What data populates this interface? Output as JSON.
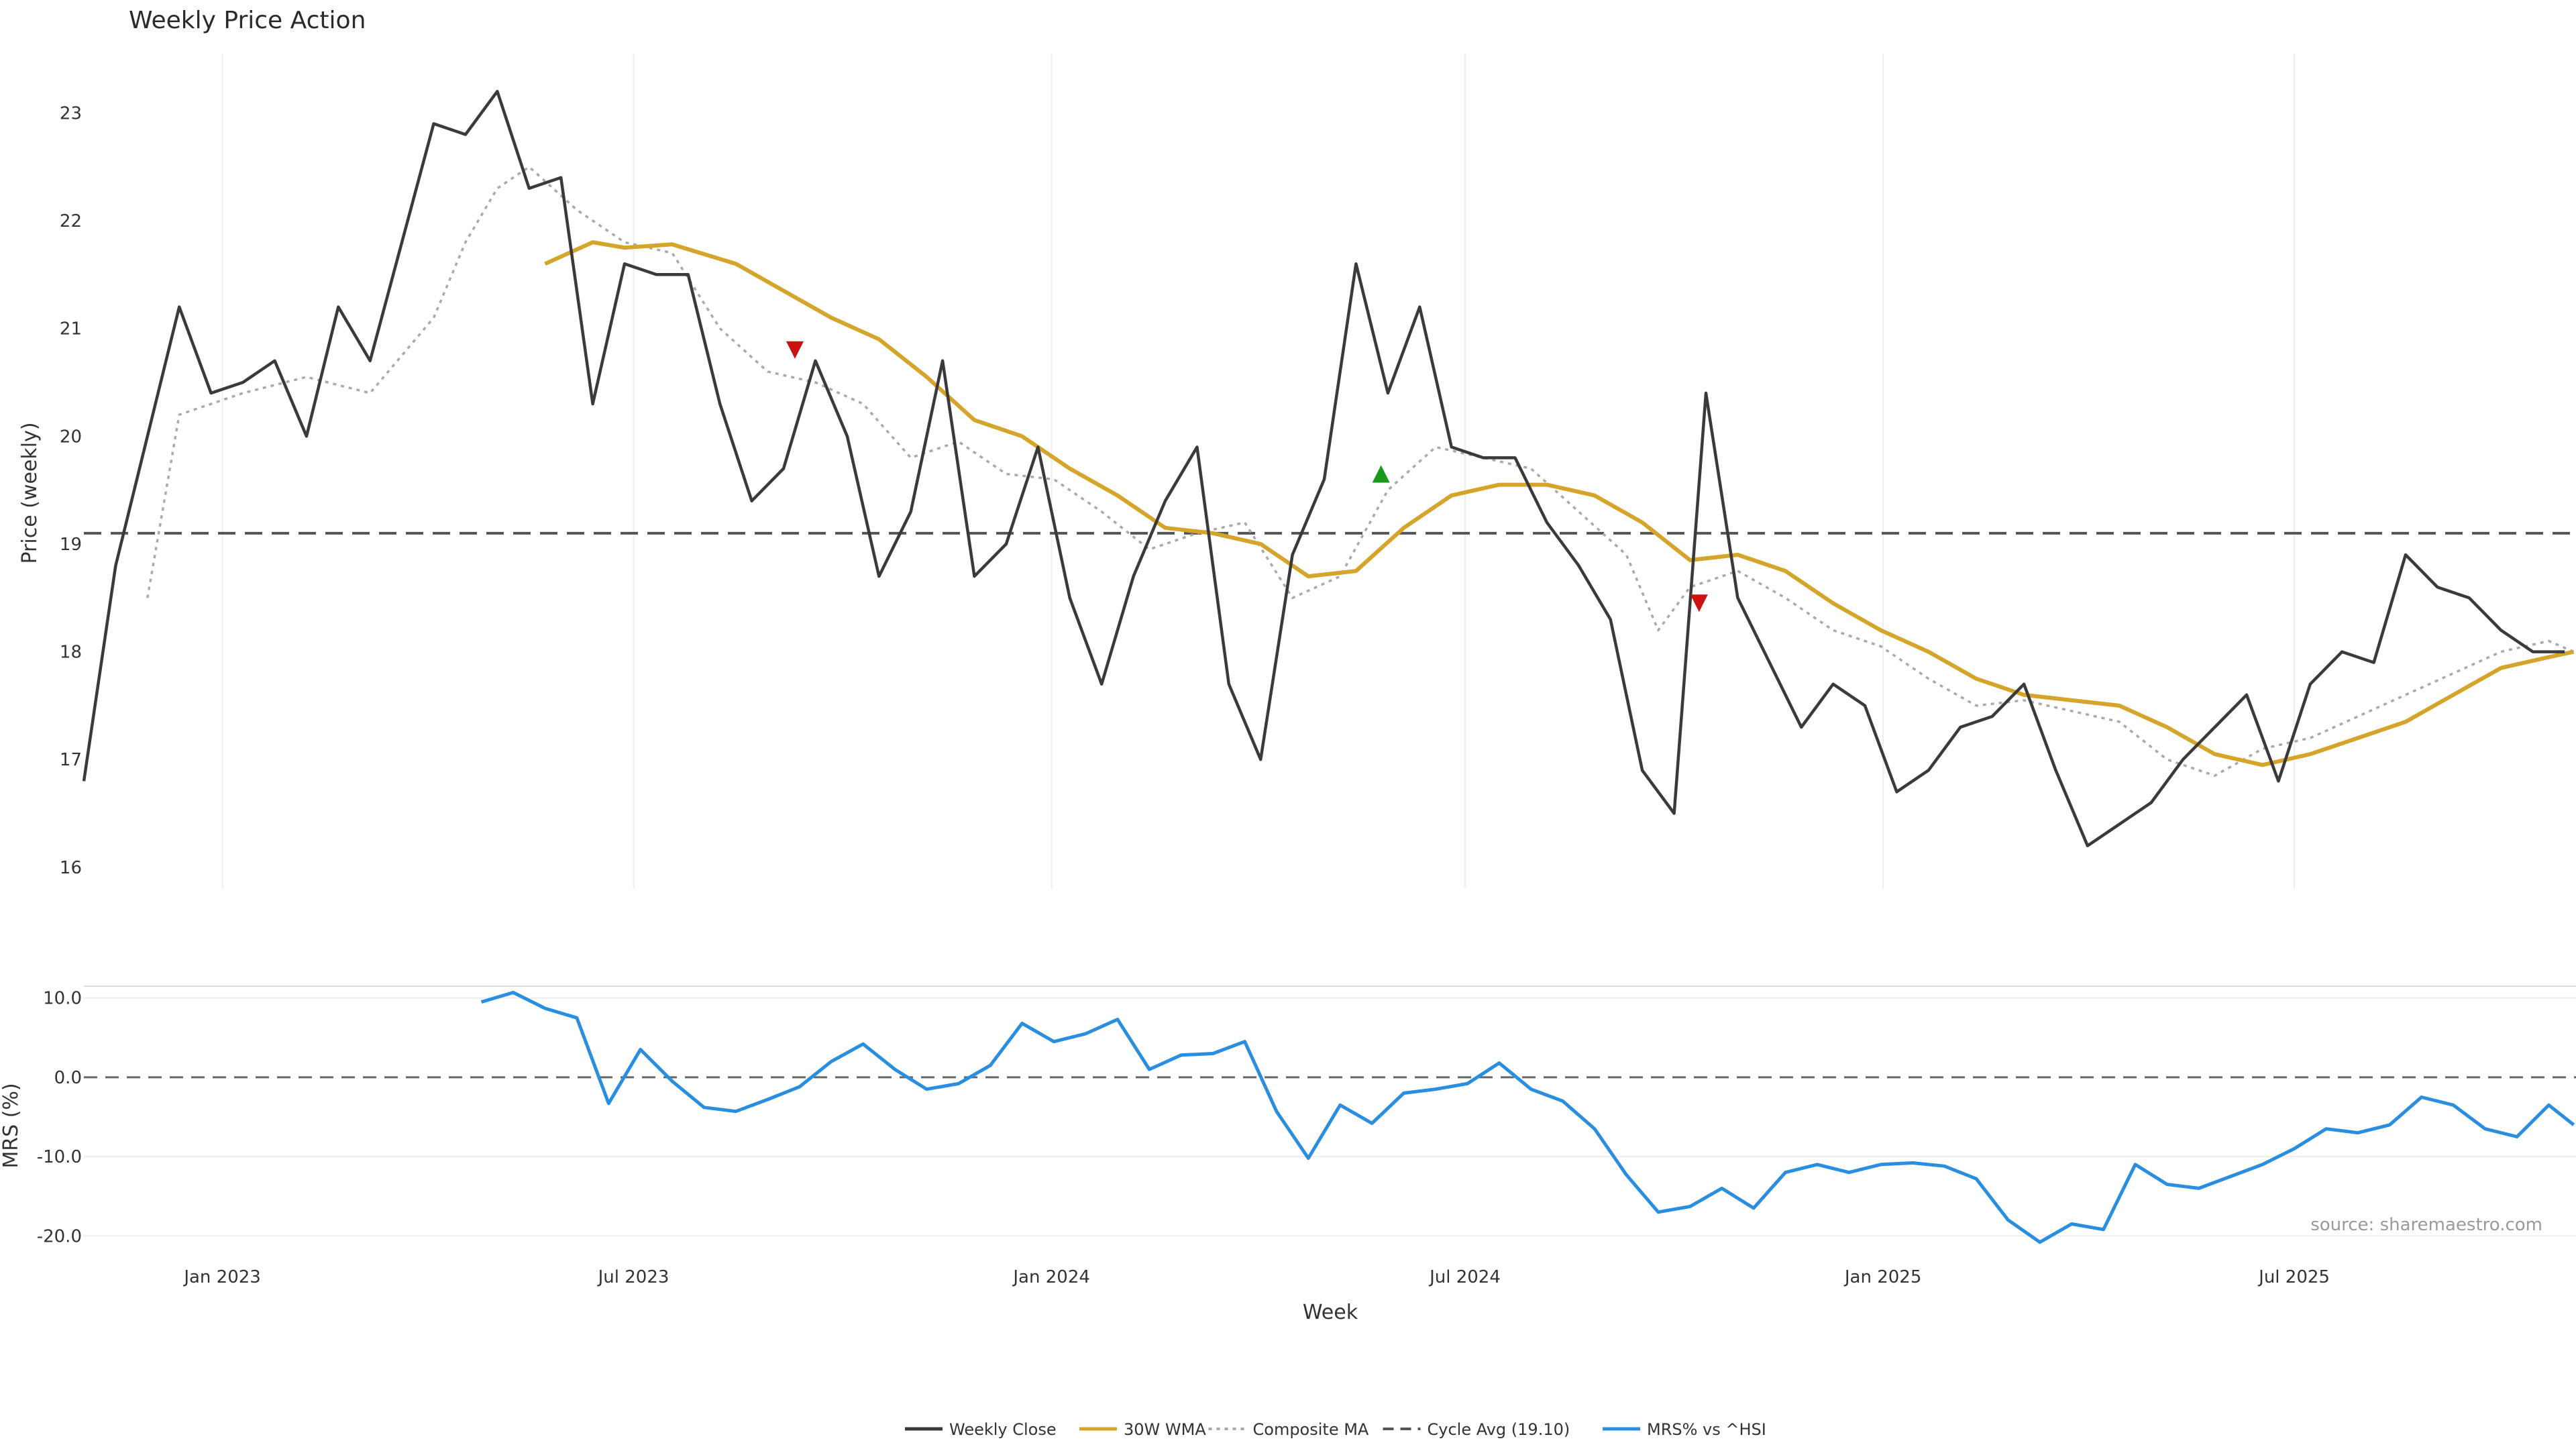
{
  "chart_data": {
    "type": "line",
    "title": "Weekly Price Action",
    "xlabel": "Week",
    "source": "source: sharemaestro.com",
    "colors": {
      "close": "#3a3a3a",
      "wma": "#d4a52a",
      "composite": "#aaaaaa",
      "cycle": "#555555",
      "mrs": "#2a8ee0",
      "signal_sell": "#cc1111",
      "signal_buy": "#1a9a1a",
      "grid": "#eeeeee"
    },
    "date_ticks": [
      {
        "date": "2023-01-01",
        "label": "Jan 2023"
      },
      {
        "date": "2023-07-01",
        "label": "Jul 2023"
      },
      {
        "date": "2024-01-01",
        "label": "Jan 2024"
      },
      {
        "date": "2024-07-01",
        "label": "Jul 2024"
      },
      {
        "date": "2025-01-01",
        "label": "Jan 2025"
      },
      {
        "date": "2025-07-01",
        "label": "Jul 2025"
      }
    ],
    "price_panel": {
      "ylabel": "Price (weekly)",
      "ylim": [
        15.8,
        23.55
      ],
      "yticks": [
        16,
        17,
        18,
        19,
        20,
        21,
        22,
        23
      ],
      "x_range": [
        "2022-11-01",
        "2025-11-02"
      ],
      "cycle_avg": 19.1,
      "series": [
        {
          "name": "Weekly Close",
          "style": "solid",
          "x": [
            "2022-11-01",
            "2022-11-15",
            "2022-11-29",
            "2022-12-13",
            "2022-12-27",
            "2023-01-10",
            "2023-01-24",
            "2023-02-07",
            "2023-02-21",
            "2023-03-07",
            "2023-03-21",
            "2023-04-04",
            "2023-04-18",
            "2023-05-02",
            "2023-05-16",
            "2023-05-30",
            "2023-06-13",
            "2023-06-27",
            "2023-07-11",
            "2023-07-25",
            "2023-08-08",
            "2023-08-22",
            "2023-09-05",
            "2023-09-19",
            "2023-10-03",
            "2023-10-17",
            "2023-10-31",
            "2023-11-14",
            "2023-11-28",
            "2023-12-12",
            "2023-12-26",
            "2024-01-09",
            "2024-01-23",
            "2024-02-06",
            "2024-02-20",
            "2024-03-05",
            "2024-03-19",
            "2024-04-02",
            "2024-04-16",
            "2024-04-30",
            "2024-05-14",
            "2024-05-28",
            "2024-06-11",
            "2024-06-25",
            "2024-07-09",
            "2024-07-23",
            "2024-08-06",
            "2024-08-20",
            "2024-09-03",
            "2024-09-17",
            "2024-10-01",
            "2024-10-15",
            "2024-10-29",
            "2024-11-12",
            "2024-11-26",
            "2024-12-10",
            "2024-12-24",
            "2025-01-07",
            "2025-01-21",
            "2025-02-04",
            "2025-02-18",
            "2025-03-04",
            "2025-03-18",
            "2025-04-01",
            "2025-04-15",
            "2025-04-29",
            "2025-05-13",
            "2025-05-27",
            "2025-06-10",
            "2025-06-24",
            "2025-07-08",
            "2025-07-22",
            "2025-08-05",
            "2025-08-19",
            "2025-09-02",
            "2025-09-16",
            "2025-09-30",
            "2025-10-14",
            "2025-10-28"
          ],
          "y": [
            16.8,
            18.8,
            20.0,
            21.2,
            20.4,
            20.5,
            20.7,
            20.0,
            21.2,
            20.7,
            21.8,
            22.9,
            22.8,
            23.2,
            22.3,
            22.4,
            20.3,
            21.6,
            21.5,
            21.5,
            20.3,
            19.4,
            19.7,
            20.7,
            20.0,
            18.7,
            19.3,
            20.7,
            18.7,
            19.0,
            19.9,
            18.5,
            17.7,
            18.7,
            19.4,
            19.9,
            17.7,
            17.0,
            18.9,
            19.6,
            21.6,
            20.4,
            21.2,
            19.9,
            19.8,
            19.8,
            19.2,
            18.8,
            18.3,
            16.9,
            16.5,
            20.4,
            18.5,
            17.9,
            17.3,
            17.7,
            17.5,
            16.7,
            16.9,
            17.3,
            17.4,
            17.7,
            16.9,
            16.2,
            16.4,
            16.6,
            17.0,
            17.3,
            17.6,
            16.8,
            17.7,
            18.0,
            17.9,
            18.9,
            18.6,
            18.5,
            18.2,
            18.0,
            18.0
          ]
        },
        {
          "name": "30W WMA",
          "style": "solid",
          "x": [
            "2023-05-23",
            "2023-06-13",
            "2023-06-27",
            "2023-07-18",
            "2023-08-15",
            "2023-09-05",
            "2023-09-26",
            "2023-10-17",
            "2023-11-07",
            "2023-11-28",
            "2023-12-19",
            "2024-01-09",
            "2024-01-30",
            "2024-02-20",
            "2024-03-12",
            "2024-04-02",
            "2024-04-23",
            "2024-05-14",
            "2024-06-04",
            "2024-06-25",
            "2024-07-16",
            "2024-08-06",
            "2024-08-27",
            "2024-09-17",
            "2024-10-08",
            "2024-10-29",
            "2024-11-19",
            "2024-12-10",
            "2024-12-31",
            "2025-01-21",
            "2025-02-11",
            "2025-03-04",
            "2025-03-25",
            "2025-04-15",
            "2025-05-06",
            "2025-05-27",
            "2025-06-17",
            "2025-07-08",
            "2025-07-29",
            "2025-08-19",
            "2025-09-09",
            "2025-09-30",
            "2025-10-21",
            "2025-11-01"
          ],
          "y": [
            21.6,
            21.8,
            21.75,
            21.78,
            21.6,
            21.35,
            21.1,
            20.9,
            20.55,
            20.15,
            20.0,
            19.7,
            19.45,
            19.15,
            19.1,
            19.0,
            18.7,
            18.75,
            19.15,
            19.45,
            19.55,
            19.55,
            19.45,
            19.2,
            18.85,
            18.9,
            18.75,
            18.45,
            18.2,
            18.0,
            17.75,
            17.6,
            17.55,
            17.5,
            17.3,
            17.05,
            16.95,
            17.05,
            17.2,
            17.35,
            17.6,
            17.85,
            17.95,
            18.0
          ]
        },
        {
          "name": "Composite MA",
          "style": "dotted",
          "x": [
            "2022-11-29",
            "2022-12-13",
            "2023-01-10",
            "2023-02-07",
            "2023-03-07",
            "2023-04-04",
            "2023-04-18",
            "2023-05-02",
            "2023-05-16",
            "2023-06-06",
            "2023-06-27",
            "2023-07-18",
            "2023-08-08",
            "2023-08-29",
            "2023-09-19",
            "2023-10-10",
            "2023-10-31",
            "2023-11-21",
            "2023-12-12",
            "2024-01-02",
            "2024-01-23",
            "2024-02-13",
            "2024-03-05",
            "2024-03-26",
            "2024-04-16",
            "2024-05-07",
            "2024-05-28",
            "2024-06-18",
            "2024-07-09",
            "2024-07-30",
            "2024-08-20",
            "2024-09-10",
            "2024-09-24",
            "2024-10-08",
            "2024-10-29",
            "2024-11-19",
            "2024-12-10",
            "2024-12-31",
            "2025-01-21",
            "2025-02-11",
            "2025-03-04",
            "2025-03-25",
            "2025-04-15",
            "2025-05-06",
            "2025-05-27",
            "2025-06-17",
            "2025-07-08",
            "2025-07-29",
            "2025-08-19",
            "2025-09-09",
            "2025-09-30",
            "2025-10-21",
            "2025-11-01"
          ],
          "y": [
            18.5,
            20.2,
            20.4,
            20.55,
            20.4,
            21.1,
            21.8,
            22.3,
            22.5,
            22.1,
            21.8,
            21.7,
            21.0,
            20.6,
            20.5,
            20.3,
            19.8,
            19.95,
            19.65,
            19.6,
            19.3,
            18.95,
            19.1,
            19.2,
            18.5,
            18.7,
            19.5,
            19.9,
            19.8,
            19.7,
            19.3,
            18.9,
            18.2,
            18.6,
            18.75,
            18.5,
            18.2,
            18.05,
            17.75,
            17.5,
            17.55,
            17.45,
            17.35,
            17.0,
            16.85,
            17.1,
            17.2,
            17.4,
            17.6,
            17.8,
            18.0,
            18.1,
            18.0
          ]
        }
      ],
      "markers": [
        {
          "type": "sell",
          "date": "2023-09-10",
          "y": 20.8
        },
        {
          "type": "buy",
          "date": "2024-05-25",
          "y": 19.65
        },
        {
          "type": "sell",
          "date": "2024-10-12",
          "y": 18.45
        }
      ]
    },
    "mrs_panel": {
      "ylabel": "MRS (%)",
      "ylim": [
        -21.5,
        11.5
      ],
      "yticks": [
        10.0,
        0.0,
        -10.0,
        -20.0
      ],
      "ytick_labels": [
        "10.0",
        "0.0",
        "-10.0",
        "-20.0"
      ],
      "series": [
        {
          "name": "MRS% vs ^HSI",
          "style": "solid",
          "x": [
            "2023-04-25",
            "2023-05-09",
            "2023-05-23",
            "2023-06-06",
            "2023-06-20",
            "2023-07-04",
            "2023-07-18",
            "2023-08-01",
            "2023-08-15",
            "2023-08-29",
            "2023-09-12",
            "2023-09-26",
            "2023-10-10",
            "2023-10-24",
            "2023-11-07",
            "2023-11-21",
            "2023-12-05",
            "2023-12-19",
            "2024-01-02",
            "2024-01-16",
            "2024-01-30",
            "2024-02-13",
            "2024-02-27",
            "2024-03-12",
            "2024-03-26",
            "2024-04-09",
            "2024-04-23",
            "2024-05-07",
            "2024-05-21",
            "2024-06-04",
            "2024-06-18",
            "2024-07-02",
            "2024-07-16",
            "2024-07-30",
            "2024-08-13",
            "2024-08-27",
            "2024-09-10",
            "2024-09-24",
            "2024-10-08",
            "2024-10-22",
            "2024-11-05",
            "2024-11-19",
            "2024-12-03",
            "2024-12-17",
            "2024-12-31",
            "2025-01-14",
            "2025-01-28",
            "2025-02-11",
            "2025-02-25",
            "2025-03-11",
            "2025-03-25",
            "2025-04-08",
            "2025-04-22",
            "2025-05-06",
            "2025-05-20",
            "2025-06-03",
            "2025-06-17",
            "2025-07-01",
            "2025-07-15",
            "2025-07-29",
            "2025-08-12",
            "2025-08-26",
            "2025-09-09",
            "2025-09-23",
            "2025-10-07",
            "2025-10-21",
            "2025-11-01"
          ],
          "y": [
            9.5,
            10.7,
            8.7,
            7.5,
            -3.3,
            3.5,
            -0.5,
            -3.8,
            -4.3,
            -2.8,
            -1.2,
            2.0,
            4.2,
            1.0,
            -1.5,
            -0.8,
            1.5,
            6.8,
            4.5,
            5.5,
            7.3,
            1.0,
            2.8,
            3.0,
            4.5,
            -4.3,
            -10.2,
            -3.5,
            -5.8,
            -2.0,
            -1.5,
            -0.8,
            1.8,
            -1.5,
            -3.0,
            -6.5,
            -12.3,
            -17.0,
            -16.3,
            -14.0,
            -16.5,
            -12.0,
            -11.0,
            -12.0,
            -11.0,
            -10.8,
            -11.2,
            -12.8,
            -18.0,
            -20.8,
            -18.5,
            -19.2,
            -11.0,
            -13.5,
            -14.0,
            -12.5,
            -11.0,
            -9.0,
            -6.5,
            -7.0,
            -6.0,
            -2.5,
            -3.5,
            -6.5,
            -7.5,
            -3.5,
            -6.0
          ]
        }
      ]
    },
    "legend": {
      "placement": "bottom-center",
      "entries": [
        {
          "label": "Weekly Close",
          "style": "solid",
          "color": "#3a3a3a"
        },
        {
          "label": "30W WMA",
          "style": "solid",
          "color": "#d4a52a"
        },
        {
          "label": "Composite MA",
          "style": "dotted",
          "color": "#aaaaaa"
        },
        {
          "label": "Cycle Avg (19.10)",
          "style": "dashed",
          "color": "#555555"
        },
        {
          "label": "MRS% vs ^HSI",
          "style": "solid",
          "color": "#2a8ee0"
        }
      ]
    }
  }
}
